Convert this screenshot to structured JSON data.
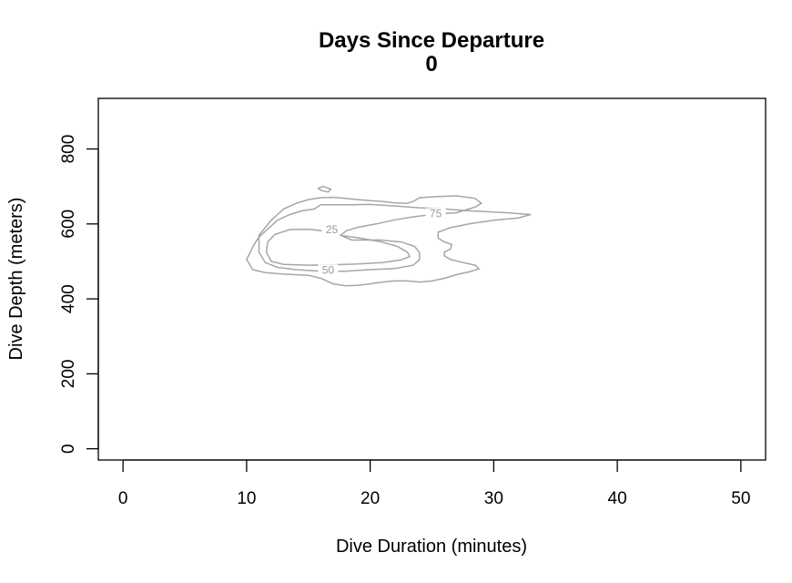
{
  "chart_data": {
    "type": "contour",
    "title": "Days Since Departure",
    "subtitle": "0",
    "xlabel": "Dive Duration (minutes)",
    "ylabel": "Dive Depth (meters)",
    "xlim": [
      -2,
      52
    ],
    "ylim": [
      935,
      -30
    ],
    "y_reversed": true,
    "xticks": [
      0,
      10,
      20,
      30,
      40,
      50
    ],
    "yticks": [
      0,
      200,
      400,
      600,
      800
    ],
    "grid": false,
    "line_color": "#a6a6a6",
    "contours": [
      {
        "level": "25",
        "label_at": [
          16.9,
          583
        ],
        "rings": [
          [
            [
              12.0,
              500
            ],
            [
              13.0,
              492
            ],
            [
              15.0,
              490
            ],
            [
              17.0,
              491
            ],
            [
              19.0,
              493
            ],
            [
              21.0,
              497
            ],
            [
              22.5,
              504
            ],
            [
              23.2,
              513
            ],
            [
              23.0,
              525
            ],
            [
              22.2,
              540
            ],
            [
              20.8,
              553
            ],
            [
              19.0,
              563
            ],
            [
              17.5,
              570
            ],
            [
              16.5,
              580
            ],
            [
              15.0,
              586
            ],
            [
              13.5,
              585
            ],
            [
              12.3,
              572
            ],
            [
              11.7,
              552
            ],
            [
              11.6,
              525
            ],
            [
              12.0,
              500
            ]
          ],
          [
            [
              16.0,
              690
            ],
            [
              16.6,
              685
            ],
            [
              16.8,
              693
            ],
            [
              16.2,
              700
            ],
            [
              15.8,
              695
            ],
            [
              16.0,
              690
            ]
          ]
        ]
      },
      {
        "level": "50",
        "label_at": [
          16.6,
          475
        ],
        "rings": [
          [
            [
              11.5,
              497
            ],
            [
              12.5,
              484
            ],
            [
              14.0,
              478
            ],
            [
              16.0,
              474
            ],
            [
              18.0,
              474
            ],
            [
              20.0,
              478
            ],
            [
              22.0,
              481
            ],
            [
              23.5,
              490
            ],
            [
              24.0,
              505
            ],
            [
              24.0,
              523
            ],
            [
              23.6,
              540
            ],
            [
              22.5,
              552
            ],
            [
              20.8,
              557
            ],
            [
              18.5,
              557
            ],
            [
              17.6,
              570
            ],
            [
              18.1,
              582
            ],
            [
              19.0,
              591
            ],
            [
              20.5,
              600
            ],
            [
              22.0,
              611
            ],
            [
              23.5,
              619
            ],
            [
              25.0,
              625
            ],
            [
              27.0,
              630
            ],
            [
              28.0,
              640
            ],
            [
              28.5,
              645
            ],
            [
              29.0,
              655
            ],
            [
              28.5,
              668
            ],
            [
              27.0,
              675
            ],
            [
              25.5,
              673
            ],
            [
              24.0,
              670
            ],
            [
              23.5,
              660
            ],
            [
              23.0,
              655
            ],
            [
              22.0,
              656
            ],
            [
              21.0,
              660
            ],
            [
              20.0,
              662
            ],
            [
              19.0,
              665
            ],
            [
              18.0,
              668
            ],
            [
              17.0,
              671
            ],
            [
              16.0,
              670
            ],
            [
              15.0,
              665
            ],
            [
              14.0,
              655
            ],
            [
              13.0,
              640
            ],
            [
              12.5,
              625
            ],
            [
              12.0,
              610
            ],
            [
              11.5,
              590
            ],
            [
              11.0,
              570
            ],
            [
              11.0,
              545
            ],
            [
              11.0,
              525
            ],
            [
              11.5,
              497
            ]
          ]
        ]
      },
      {
        "level": "75",
        "label_at": [
          25.3,
          625
        ],
        "rings": [
          [
            [
              10.5,
              478
            ],
            [
              11.5,
              470
            ],
            [
              13.0,
              466
            ],
            [
              15.0,
              463
            ],
            [
              16.0,
              455
            ],
            [
              17.0,
              440
            ],
            [
              18.0,
              435
            ],
            [
              19.0,
              436
            ],
            [
              20.0,
              440
            ],
            [
              21.0,
              445
            ],
            [
              22.0,
              448
            ],
            [
              23.0,
              448
            ],
            [
              24.0,
              445
            ],
            [
              25.0,
              448
            ],
            [
              26.0,
              455
            ],
            [
              27.0,
              465
            ],
            [
              28.0,
              472
            ],
            [
              28.8,
              480
            ],
            [
              28.5,
              490
            ],
            [
              27.5,
              497
            ],
            [
              26.5,
              505
            ],
            [
              26.0,
              515
            ],
            [
              26.0,
              525
            ],
            [
              26.5,
              533
            ],
            [
              26.6,
              545
            ],
            [
              26.0,
              552
            ],
            [
              25.5,
              562
            ],
            [
              25.5,
              578
            ],
            [
              26.5,
              590
            ],
            [
              28.0,
              600
            ],
            [
              30.0,
              610
            ],
            [
              32.0,
              616
            ],
            [
              33.0,
              625
            ],
            [
              31.0,
              630
            ],
            [
              28.0,
              635
            ],
            [
              26.0,
              640
            ],
            [
              24.0,
              643
            ],
            [
              22.0,
              648
            ],
            [
              20.0,
              652
            ],
            [
              18.5,
              651
            ],
            [
              17.0,
              651
            ],
            [
              16.0,
              651
            ],
            [
              15.5,
              640
            ],
            [
              14.5,
              635
            ],
            [
              13.5,
              625
            ],
            [
              12.5,
              610
            ],
            [
              12.0,
              595
            ],
            [
              11.5,
              580
            ],
            [
              11.0,
              565
            ],
            [
              10.6,
              545
            ],
            [
              10.3,
              525
            ],
            [
              10.0,
              505
            ],
            [
              10.5,
              478
            ]
          ]
        ]
      }
    ]
  }
}
